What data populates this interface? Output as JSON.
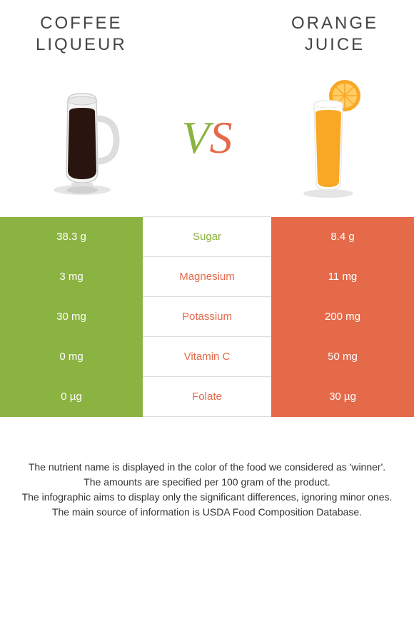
{
  "header": {
    "left_title_line1": "COFFEE",
    "left_title_line2": "LIQUEUR",
    "right_title_line1": "ORANGE",
    "right_title_line2": "JUICE"
  },
  "vs": {
    "v": "V",
    "s": "S"
  },
  "colors": {
    "green": "#8bb341",
    "orange": "#e46a4a",
    "text": "#333333",
    "title": "#444444"
  },
  "comparison": {
    "rows": [
      {
        "left": "38.3 g",
        "label": "Sugar",
        "right": "8.4 g",
        "winner": "green"
      },
      {
        "left": "3 mg",
        "label": "Magnesium",
        "right": "11 mg",
        "winner": "orange"
      },
      {
        "left": "30 mg",
        "label": "Potassium",
        "right": "200 mg",
        "winner": "orange"
      },
      {
        "left": "0 mg",
        "label": "Vitamin C",
        "right": "50 mg",
        "winner": "orange"
      },
      {
        "left": "0 µg",
        "label": "Folate",
        "right": "30 µg",
        "winner": "orange"
      }
    ]
  },
  "notes": {
    "line1": "The nutrient name is displayed in the color of the food we considered as 'winner'.",
    "line2": "The amounts are specified per 100 gram of the product.",
    "line3": "The infographic aims to display only the significant differences, ignoring minor ones.",
    "line4": "The main source of information is USDA Food Composition Database."
  },
  "typography": {
    "title_fontsize": 24,
    "title_letter_spacing": 3,
    "vs_fontsize": 64,
    "cell_fontsize": 15,
    "notes_fontsize": 14
  }
}
